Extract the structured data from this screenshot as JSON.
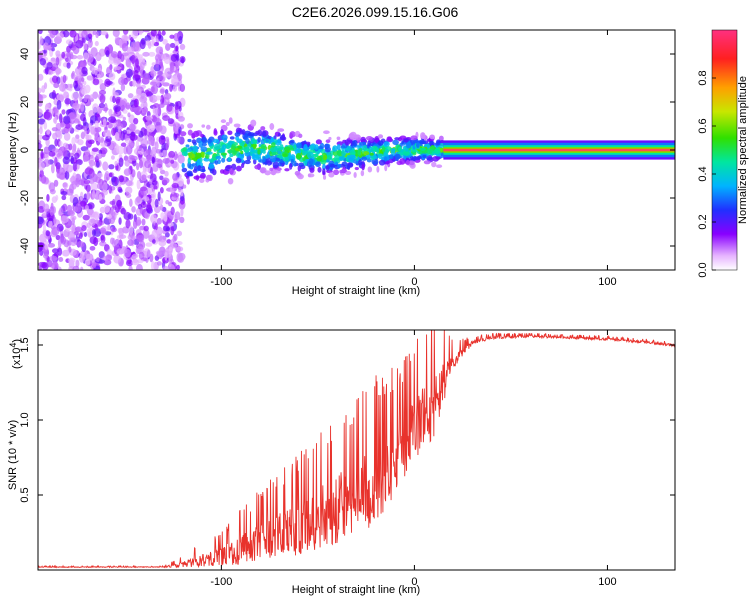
{
  "title": "C2E6.2026.099.15.16.G06",
  "colors": {
    "snr_line": "#e8322c",
    "axis": "#000000",
    "background": "#ffffff"
  },
  "chart_data": [
    {
      "type": "heatmap",
      "name": "spectrogram",
      "xlabel": "Height of straight line (km)",
      "ylabel": "Frequency (Hz)",
      "xlim": [
        -195,
        135
      ],
      "ylim": [
        -50,
        50
      ],
      "x_ticks": [
        -100,
        0,
        100
      ],
      "y_ticks": [
        -40,
        -20,
        0,
        20,
        40
      ],
      "colorbar": {
        "label": "Normalized spectral amplitude",
        "range": [
          0,
          1
        ],
        "ticks": [
          "0.0",
          "0.2",
          "0.4",
          "0.6",
          "0.8"
        ]
      },
      "regions": [
        {
          "description": "Noise scatter",
          "x_range": [
            -195,
            -120
          ],
          "freq_range": [
            -50,
            50
          ],
          "amplitude": 0.15
        },
        {
          "description": "Wandering signal",
          "x_range": [
            -120,
            15
          ],
          "center_freq": [
            -3,
            -2,
            0,
            1,
            0,
            -2,
            -3,
            -2,
            -1,
            0,
            0,
            0
          ],
          "amplitude": 0.5
        },
        {
          "description": "Steady carrier",
          "x_range": [
            15,
            135
          ],
          "center_freq": 0,
          "amplitude": 1.0
        }
      ]
    },
    {
      "type": "line",
      "name": "snr",
      "xlabel": "Height of straight line (km)",
      "ylabel": "SNR (10 * v/v)",
      "scale_label": "(x10",
      "scale_exponent": "4",
      "xlim": [
        -195,
        135
      ],
      "ylim": [
        0,
        1.6
      ],
      "x_ticks": [
        -100,
        0,
        100
      ],
      "y_ticks": [
        0.5,
        1.0,
        1.5
      ],
      "y_tick_labels": [
        "0.5",
        "1.0",
        "1.5"
      ],
      "envelope": {
        "x": [
          -195,
          -130,
          -120,
          -100,
          -80,
          -60,
          -40,
          -20,
          -10,
          0,
          10,
          20,
          30,
          40,
          60,
          80,
          100,
          120,
          135
        ],
        "mean": [
          0.02,
          0.02,
          0.04,
          0.1,
          0.2,
          0.3,
          0.45,
          0.6,
          0.75,
          0.95,
          1.15,
          1.4,
          1.52,
          1.55,
          1.56,
          1.55,
          1.54,
          1.52,
          1.5
        ],
        "spread": [
          0.005,
          0.005,
          0.04,
          0.12,
          0.25,
          0.35,
          0.45,
          0.5,
          0.45,
          0.4,
          0.45,
          0.1,
          0.03,
          0.02,
          0.015,
          0.015,
          0.015,
          0.015,
          0.015
        ]
      }
    }
  ]
}
